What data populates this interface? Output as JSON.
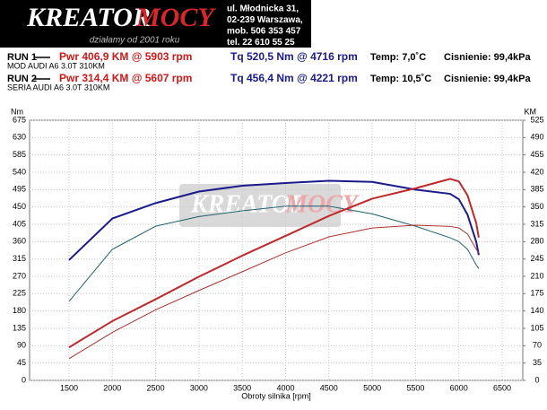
{
  "header": {
    "brand": "KREATOR",
    "brand_accent": "MOCY",
    "tagline": "działamy od 2001 roku",
    "address": [
      "ul. Młodnicka 31,",
      "02-239  Warszawa,",
      "mob.  506 353 457",
      "tel.  22 610 55 25"
    ]
  },
  "runs": [
    {
      "label": "RUN 1",
      "power": "Pwr  406,9 KM @ 5903 rpm",
      "torque": "Tq 520,5 Nm @ 4716 rpm",
      "temp": "Temp: 7,0˚C",
      "pressure": "Cisnienie: 99,4kPa",
      "model": "MOD AUDI A6 3.0T 310KM"
    },
    {
      "label": "RUN 2",
      "power": "Pwr  314,4 KM @ 5607 rpm",
      "torque": "Tq 456,4 Nm @ 4221 rpm",
      "temp": "Temp: 10,5˚C",
      "pressure": "Cisnienie: 99,4kPa",
      "model": "SERIA AUDI A6 3.0T 310KM"
    }
  ],
  "chart_data": {
    "type": "line",
    "xlabel": "Obroty silnika [rpm]",
    "ylabel": "Nm",
    "y2label": "KM",
    "grid": true,
    "x": [
      1500,
      2000,
      2500,
      3000,
      3500,
      4000,
      4500,
      5000,
      5500,
      5900,
      6000,
      6100,
      6200,
      6230
    ],
    "xlim": [
      1045,
      6738
    ],
    "xticks": [
      1500,
      2000,
      2500,
      3000,
      3500,
      4000,
      4500,
      5000,
      5500,
      6000,
      6500
    ],
    "ylim": [
      0,
      675
    ],
    "yticks": [
      0,
      45,
      90,
      135,
      180,
      225,
      270,
      315,
      360,
      405,
      450,
      495,
      540,
      585,
      630,
      675
    ],
    "y2lim": [
      0,
      525
    ],
    "y2ticks": [
      0,
      35,
      70,
      105,
      140,
      175,
      210,
      245,
      280,
      315,
      350,
      385,
      420,
      455,
      490,
      525
    ],
    "series": [
      {
        "color": "#1a1a8c",
        "width": 2,
        "values": [
          312,
          420,
          460,
          490,
          505,
          512,
          518,
          515,
          495,
          484,
          470,
          430,
          360,
          325
        ]
      },
      {
        "color": "#1f6070",
        "width": 1,
        "values": [
          205,
          340,
          400,
          425,
          440,
          452,
          452,
          432,
          400,
          370,
          360,
          340,
          300,
          290
        ]
      },
      {
        "color": "#c0282c",
        "width": 2,
        "axis": "y2",
        "values": [
          66.6,
          119.6,
          163.7,
          209.3,
          251.7,
          291.6,
          331.9,
          366.7,
          387.6,
          406.6,
          401.5,
          373.5,
          317.8,
          288.3
        ]
      },
      {
        "color": "#b03030",
        "width": 1,
        "axis": "y2",
        "values": [
          43.8,
          96.8,
          142.4,
          181.5,
          219.3,
          257.4,
          289.6,
          307.6,
          313.3,
          310.8,
          307.6,
          295.3,
          264.8,
          257.2
        ]
      }
    ]
  }
}
